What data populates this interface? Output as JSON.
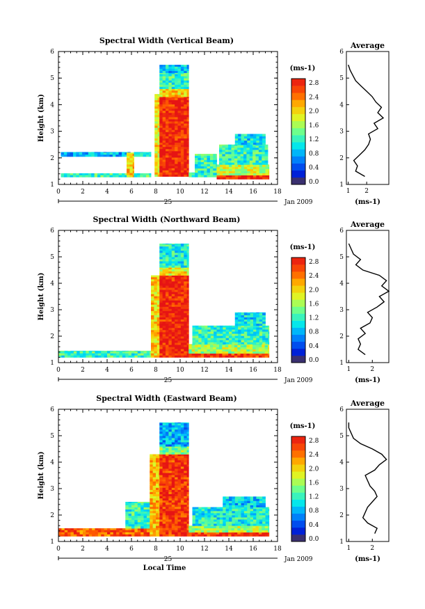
{
  "chart_data": [
    {
      "type": "heatmap",
      "title": "Spectral Width (Vertical Beam)",
      "xlabel": "",
      "ylabel": "Height (km)",
      "xlim": [
        0,
        18
      ],
      "ylim": [
        1,
        6
      ],
      "x_ticks": [
        "0",
        "2",
        "4",
        "6",
        "8",
        "10",
        "12",
        "14",
        "16",
        "18"
      ],
      "y_ticks": [
        "1",
        "2",
        "3",
        "4",
        "5",
        "6"
      ],
      "date_center": "25",
      "date_right": "Jan 2009",
      "colorbar": {
        "unit": "(ms-1)",
        "ticks": [
          "0.0",
          "0.4",
          "0.8",
          "1.2",
          "1.6",
          "2.0",
          "2.4",
          "2.8"
        ],
        "min": 0.0,
        "max": 3.0
      },
      "profile": {
        "title": "Average",
        "xlabel": "(ms-1)",
        "xlim": [
          0.9,
          3.2
        ],
        "x_ticks": [
          "1",
          "2"
        ],
        "height": [
          1.3,
          1.5,
          1.7,
          1.9,
          2.1,
          2.3,
          2.5,
          2.7,
          2.9,
          3.1,
          3.3,
          3.5,
          3.7,
          3.9,
          4.1,
          4.3,
          4.5,
          4.7,
          4.9,
          5.1,
          5.3,
          5.5
        ],
        "width": [
          1.9,
          1.4,
          1.5,
          1.3,
          1.6,
          1.9,
          2.1,
          2.2,
          2.1,
          2.6,
          2.4,
          2.9,
          2.6,
          2.8,
          2.5,
          2.3,
          2.0,
          1.7,
          1.4,
          1.25,
          1.1,
          1.0
        ]
      },
      "regions": [
        {
          "t0": 0.2,
          "t1": 5.9,
          "h0": 1.28,
          "h1": 1.42,
          "v": 1.3
        },
        {
          "t0": 0.2,
          "t1": 5.9,
          "h0": 2.05,
          "h1": 2.22,
          "v": 0.9
        },
        {
          "t0": 5.6,
          "t1": 6.2,
          "h0": 1.28,
          "h1": 2.2,
          "v": 2.2
        },
        {
          "t0": 6.2,
          "t1": 7.6,
          "h0": 1.28,
          "h1": 1.42,
          "v": 1.4
        },
        {
          "t0": 6.2,
          "t1": 7.6,
          "h0": 2.05,
          "h1": 2.22,
          "v": 1.0
        },
        {
          "t0": 7.9,
          "t1": 8.3,
          "h0": 1.3,
          "h1": 4.4,
          "v": 2.0
        },
        {
          "t0": 8.3,
          "t1": 10.7,
          "h0": 1.3,
          "h1": 4.3,
          "v": 2.9
        },
        {
          "t0": 8.3,
          "t1": 10.7,
          "h0": 4.3,
          "h1": 4.6,
          "v": 2.1
        },
        {
          "t0": 8.3,
          "t1": 10.7,
          "h0": 4.6,
          "h1": 5.2,
          "v": 1.3
        },
        {
          "t0": 8.3,
          "t1": 10.7,
          "h0": 5.2,
          "h1": 5.5,
          "v": 1.0
        },
        {
          "t0": 10.7,
          "t1": 13.0,
          "h0": 1.28,
          "h1": 1.45,
          "v": 1.2
        },
        {
          "t0": 11.2,
          "t1": 13.0,
          "h0": 1.45,
          "h1": 2.15,
          "v": 1.3
        },
        {
          "t0": 13.0,
          "t1": 17.3,
          "h0": 1.2,
          "h1": 1.35,
          "v": 2.9
        },
        {
          "t0": 13.0,
          "t1": 17.3,
          "h0": 1.35,
          "h1": 1.75,
          "v": 1.8
        },
        {
          "t0": 13.2,
          "t1": 17.2,
          "h0": 1.75,
          "h1": 2.5,
          "v": 1.3
        },
        {
          "t0": 14.5,
          "t1": 17.0,
          "h0": 2.5,
          "h1": 2.9,
          "v": 1.1
        }
      ]
    },
    {
      "type": "heatmap",
      "title": "Spectral Width (Northward Beam)",
      "xlabel": "",
      "ylabel": "Height (km)",
      "xlim": [
        0,
        18
      ],
      "ylim": [
        1,
        6
      ],
      "x_ticks": [
        "0",
        "2",
        "4",
        "6",
        "8",
        "10",
        "12",
        "14",
        "16",
        "18"
      ],
      "y_ticks": [
        "1",
        "2",
        "3",
        "4",
        "5",
        "6"
      ],
      "date_center": "25",
      "date_right": "Jan 2009",
      "colorbar": {
        "unit": "(ms-1)",
        "ticks": [
          "0.0",
          "0.4",
          "0.8",
          "1.2",
          "1.6",
          "2.0",
          "2.4",
          "2.8"
        ],
        "min": 0.0,
        "max": 3.0
      },
      "profile": {
        "title": "Average",
        "xlabel": "(ms-1)",
        "xlim": [
          0.9,
          2.7
        ],
        "x_ticks": [
          "1",
          "2"
        ],
        "height": [
          1.3,
          1.5,
          1.7,
          1.9,
          2.1,
          2.3,
          2.5,
          2.7,
          2.9,
          3.1,
          3.3,
          3.5,
          3.7,
          3.9,
          4.1,
          4.3,
          4.5,
          4.7,
          4.9,
          5.1,
          5.3,
          5.5
        ],
        "width": [
          1.7,
          1.4,
          1.5,
          1.4,
          1.7,
          1.5,
          1.9,
          2.0,
          1.8,
          2.2,
          2.5,
          2.3,
          2.7,
          2.4,
          2.6,
          2.3,
          1.6,
          1.3,
          1.5,
          1.2,
          1.1,
          1.0
        ]
      },
      "regions": [
        {
          "t0": 0.0,
          "t1": 7.6,
          "h0": 1.2,
          "h1": 1.45,
          "v": 1.3
        },
        {
          "t0": 7.6,
          "t1": 8.3,
          "h0": 1.2,
          "h1": 4.3,
          "v": 2.1
        },
        {
          "t0": 8.3,
          "t1": 10.7,
          "h0": 1.2,
          "h1": 4.3,
          "v": 2.9
        },
        {
          "t0": 8.3,
          "t1": 10.7,
          "h0": 4.3,
          "h1": 4.6,
          "v": 2.0
        },
        {
          "t0": 8.3,
          "t1": 10.7,
          "h0": 4.6,
          "h1": 5.5,
          "v": 1.2
        },
        {
          "t0": 10.7,
          "t1": 17.3,
          "h0": 1.2,
          "h1": 1.35,
          "v": 2.8
        },
        {
          "t0": 10.7,
          "t1": 17.3,
          "h0": 1.35,
          "h1": 1.7,
          "v": 1.7
        },
        {
          "t0": 11.0,
          "t1": 17.3,
          "h0": 1.7,
          "h1": 2.4,
          "v": 1.3
        },
        {
          "t0": 14.5,
          "t1": 17.0,
          "h0": 2.4,
          "h1": 2.9,
          "v": 1.1
        }
      ]
    },
    {
      "type": "heatmap",
      "title": "Spectral Width (Eastward Beam)",
      "xlabel": "Local Time",
      "ylabel": "Height (km)",
      "xlim": [
        0,
        18
      ],
      "ylim": [
        1,
        6
      ],
      "x_ticks": [
        "0",
        "2",
        "4",
        "6",
        "8",
        "10",
        "12",
        "14",
        "16",
        "18"
      ],
      "y_ticks": [
        "1",
        "2",
        "3",
        "4",
        "5",
        "6"
      ],
      "date_center": "25",
      "date_right": "Jan 2009",
      "colorbar": {
        "unit": "(ms-1)",
        "ticks": [
          "0.0",
          "0.4",
          "0.8",
          "1.2",
          "1.6",
          "2.0",
          "2.4",
          "2.8"
        ],
        "min": 0.0,
        "max": 3.0
      },
      "profile": {
        "title": "Average",
        "xlabel": "(ms-1)",
        "xlim": [
          0.9,
          2.7
        ],
        "x_ticks": [
          "1",
          "2"
        ],
        "height": [
          1.3,
          1.5,
          1.7,
          1.9,
          2.1,
          2.3,
          2.5,
          2.7,
          2.9,
          3.1,
          3.3,
          3.5,
          3.7,
          3.9,
          4.1,
          4.3,
          4.5,
          4.7,
          4.9,
          5.1,
          5.3,
          5.5
        ],
        "width": [
          2.1,
          2.2,
          1.8,
          1.6,
          1.7,
          1.8,
          2.0,
          2.2,
          2.1,
          1.9,
          1.8,
          1.7,
          2.1,
          2.3,
          2.6,
          2.4,
          2.0,
          1.5,
          1.2,
          1.1,
          1.0,
          1.0
        ]
      },
      "regions": [
        {
          "t0": 0.0,
          "t1": 7.6,
          "h0": 1.2,
          "h1": 1.5,
          "v": 2.6
        },
        {
          "t0": 5.5,
          "t1": 7.5,
          "h0": 1.5,
          "h1": 2.5,
          "v": 1.3
        },
        {
          "t0": 7.5,
          "t1": 8.3,
          "h0": 1.2,
          "h1": 4.3,
          "v": 2.2
        },
        {
          "t0": 8.3,
          "t1": 10.7,
          "h0": 1.2,
          "h1": 4.3,
          "v": 2.8
        },
        {
          "t0": 8.3,
          "t1": 10.7,
          "h0": 4.3,
          "h1": 4.6,
          "v": 1.6
        },
        {
          "t0": 8.3,
          "t1": 10.7,
          "h0": 4.6,
          "h1": 5.5,
          "v": 0.9
        },
        {
          "t0": 10.7,
          "t1": 17.3,
          "h0": 1.2,
          "h1": 1.35,
          "v": 2.8
        },
        {
          "t0": 10.7,
          "t1": 17.3,
          "h0": 1.35,
          "h1": 1.6,
          "v": 1.7
        },
        {
          "t0": 11.0,
          "t1": 17.3,
          "h0": 1.6,
          "h1": 2.3,
          "v": 1.2
        },
        {
          "t0": 13.5,
          "t1": 17.0,
          "h0": 2.3,
          "h1": 2.7,
          "v": 1.0
        }
      ]
    }
  ]
}
